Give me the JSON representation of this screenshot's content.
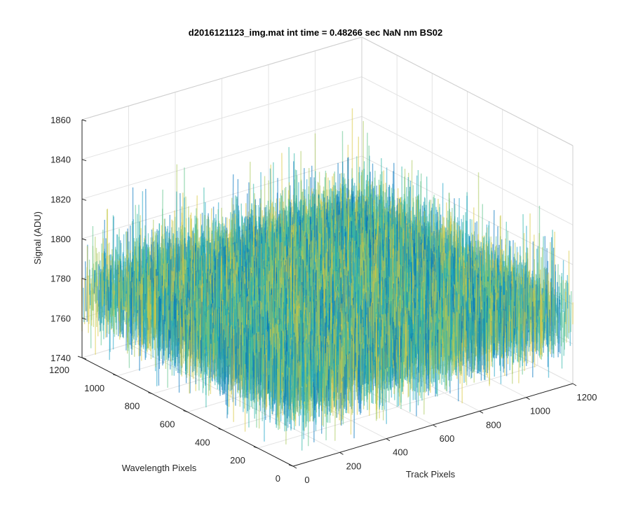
{
  "chart_data": {
    "type": "surface",
    "title": "d2016121123_img.mat int time = 0.48266 sec  NaN nm BS02",
    "xlabel": "Track Pixels",
    "ylabel": "Wavelength Pixels",
    "zlabel": "Signal (ADU)",
    "xlim": [
      0,
      1200
    ],
    "ylim": [
      0,
      1200
    ],
    "zlim": [
      1740,
      1860
    ],
    "x_ticks": [
      "0",
      "200",
      "400",
      "600",
      "800",
      "1000",
      "1200"
    ],
    "y_ticks": [
      "0",
      "200",
      "400",
      "600",
      "800",
      "1000",
      "1200"
    ],
    "z_ticks": [
      "1740",
      "1760",
      "1780",
      "1800",
      "1820",
      "1840",
      "1860"
    ],
    "grid": true,
    "colormap": [
      "#0072bd",
      "#1ba3c6",
      "#2cb5a5",
      "#5fc28a",
      "#a9c95a",
      "#d9c840"
    ],
    "surface": {
      "x_range": [
        0,
        1200
      ],
      "y_range": [
        0,
        1200
      ],
      "mean_signal": 1785,
      "noise_min": 1745,
      "noise_max": 1845
    }
  }
}
